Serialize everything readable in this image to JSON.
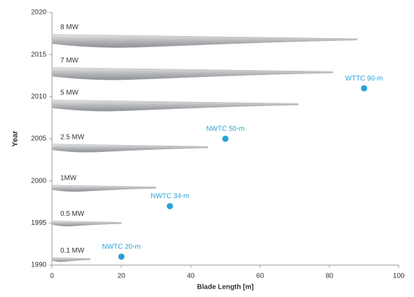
{
  "chart_data": {
    "type": "scatter",
    "xlabel": "Blade Length [m]",
    "ylabel": "Year",
    "xlim": [
      0,
      100
    ],
    "ylim": [
      1990,
      2020
    ],
    "xticks": [
      0,
      20,
      40,
      60,
      80,
      100
    ],
    "yticks": [
      1990,
      1995,
      2000,
      2005,
      2010,
      2015,
      2020
    ],
    "blades": {
      "color": "#a9abaf",
      "labels": [
        "8 MW",
        "7 MW",
        "5 MW",
        "2.5 MW",
        "1MW",
        "0.5 MW",
        "0.1 MW"
      ],
      "lengths": [
        88,
        81,
        71,
        45,
        30,
        20,
        11
      ],
      "years": [
        2016.8,
        2012.9,
        2009.1,
        2004,
        1999.2,
        1995,
        1990.7
      ]
    },
    "series": [
      {
        "color": "#2aa0d8",
        "labels": [
          "NWTC 20-m",
          "NWTC 34-m",
          "NWTC 50-m",
          "WTTC 90-m"
        ],
        "x": [
          20,
          34,
          50,
          90
        ],
        "values": [
          1991,
          1997,
          2005,
          2011
        ]
      }
    ]
  }
}
